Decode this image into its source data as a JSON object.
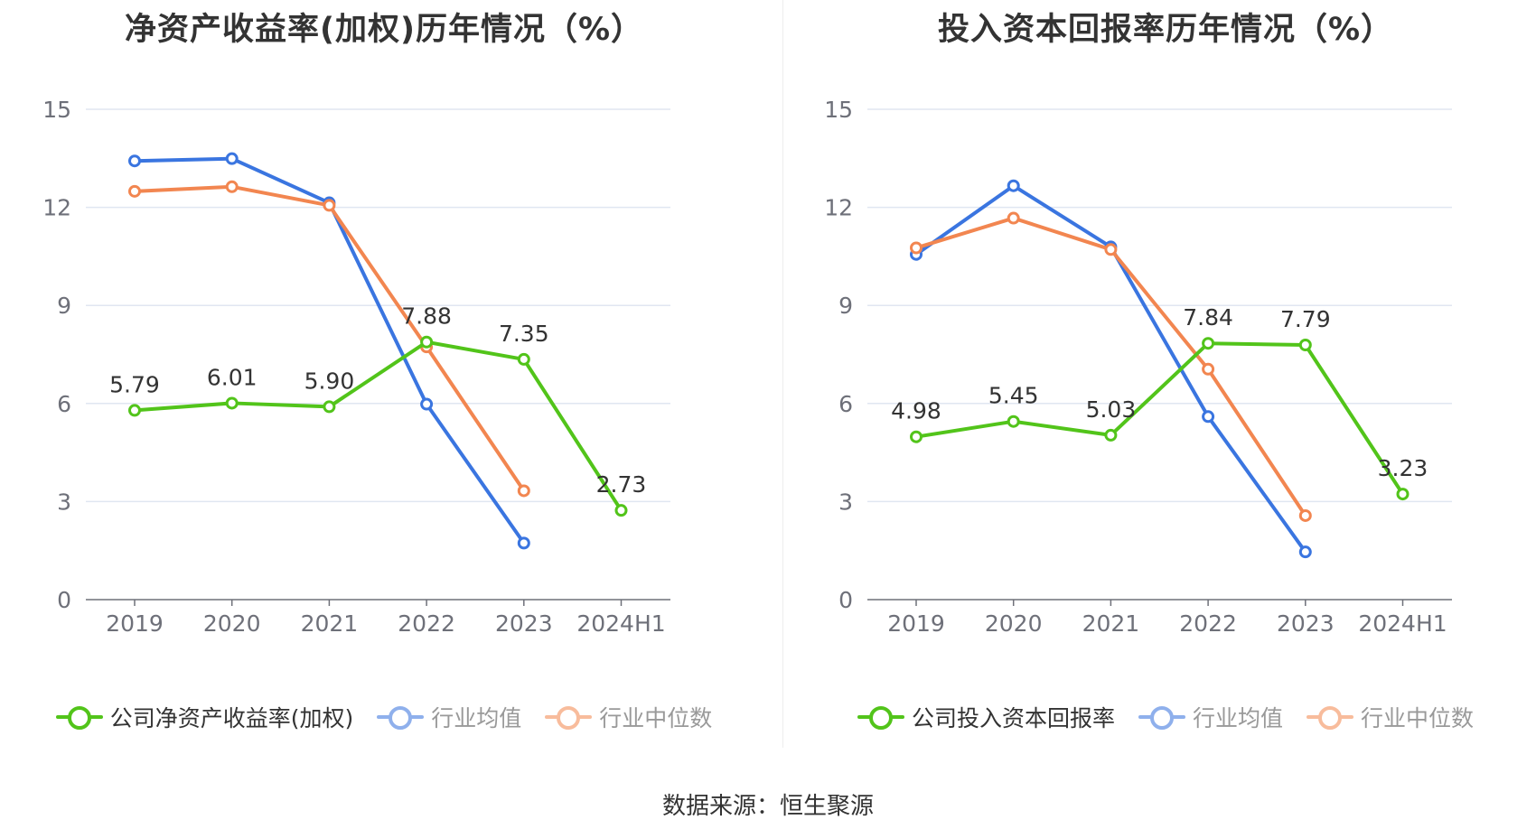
{
  "chart_data": [
    {
      "type": "line",
      "title": "净资产收益率(加权)历年情况（%）",
      "categories": [
        "2019",
        "2020",
        "2021",
        "2022",
        "2023",
        "2024H1"
      ],
      "ylim": [
        0,
        15
      ],
      "yticks": [
        0,
        3,
        6,
        9,
        12,
        15
      ],
      "grid": true,
      "legend_position": "bottom",
      "series": [
        {
          "name": "公司净资产收益率(加权)",
          "color": "#52c41a",
          "values": [
            5.79,
            6.01,
            5.9,
            7.88,
            7.35,
            2.73
          ],
          "labels": [
            "5.79",
            "6.01",
            "5.90",
            "7.88",
            "7.35",
            "2.73"
          ]
        },
        {
          "name": "行业均值",
          "color": "#3a75e0",
          "values": [
            13.42,
            13.49,
            12.14,
            5.98,
            1.73,
            null
          ]
        },
        {
          "name": "行业中位数",
          "color": "#f28650",
          "values": [
            12.49,
            12.63,
            12.06,
            7.73,
            3.33,
            null
          ]
        }
      ]
    },
    {
      "type": "line",
      "title": "投入资本回报率历年情况（%）",
      "categories": [
        "2019",
        "2020",
        "2021",
        "2022",
        "2023",
        "2024H1"
      ],
      "ylim": [
        0,
        15
      ],
      "yticks": [
        0,
        3,
        6,
        9,
        12,
        15
      ],
      "grid": true,
      "legend_position": "bottom",
      "series": [
        {
          "name": "公司投入资本回报率",
          "color": "#52c41a",
          "values": [
            4.98,
            5.45,
            5.03,
            7.84,
            7.79,
            3.23
          ],
          "labels": [
            "4.98",
            "5.45",
            "5.03",
            "7.84",
            "7.79",
            "3.23"
          ]
        },
        {
          "name": "行业均值",
          "color": "#3a75e0",
          "values": [
            10.56,
            12.66,
            10.79,
            5.6,
            1.46,
            null
          ]
        },
        {
          "name": "行业中位数",
          "color": "#f28650",
          "values": [
            10.76,
            11.67,
            10.71,
            7.05,
            2.57,
            null
          ]
        }
      ]
    }
  ],
  "legend_colors": {
    "muted_blue": "#8fb0ec",
    "muted_orange": "#f8bc9c"
  },
  "source": "数据来源：恒生聚源"
}
